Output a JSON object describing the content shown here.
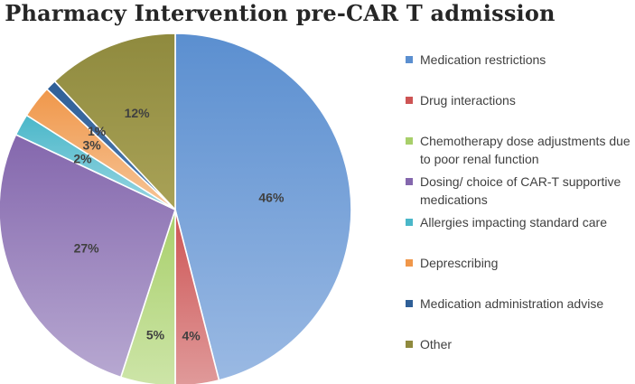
{
  "chart_data": {
    "type": "pie",
    "title": "Pharmacy Intervention pre-CAR T admission",
    "legend_position": "right",
    "slices": [
      {
        "name": "Medication restrictions",
        "value": 46,
        "label": "46%",
        "color": "#5b8fd0",
        "color_light": "#9ab9e3"
      },
      {
        "name": "Drug interactions",
        "value": 4,
        "label": "4%",
        "color": "#cd5454",
        "color_light": "#e09a9a"
      },
      {
        "name": "Chemotherapy dose adjustments due to poor renal function",
        "value": 5,
        "label": "5%",
        "color": "#a8cf6a",
        "color_light": "#cde5a8"
      },
      {
        "name": "Dosing/ choice of CAR-T supportive medications",
        "value": 27,
        "label": "27%",
        "color": "#8467ad",
        "color_light": "#b7a8d1"
      },
      {
        "name": "Allergies impacting standard care",
        "value": 2,
        "label": "2%",
        "color": "#4ab7c9",
        "color_light": "#9ad6e2"
      },
      {
        "name": "Deprescribing",
        "value": 3,
        "label": "3%",
        "color": "#f0974a",
        "color_light": "#f6c598"
      },
      {
        "name": "Medication administration advise",
        "value": 1,
        "label": "1%",
        "color": "#2f5f97",
        "color_light": "#4f7bb0"
      },
      {
        "name": "Other",
        "value": 12,
        "label": "12%",
        "color": "#8f8a3e",
        "color_light": "#a9a257"
      }
    ]
  }
}
